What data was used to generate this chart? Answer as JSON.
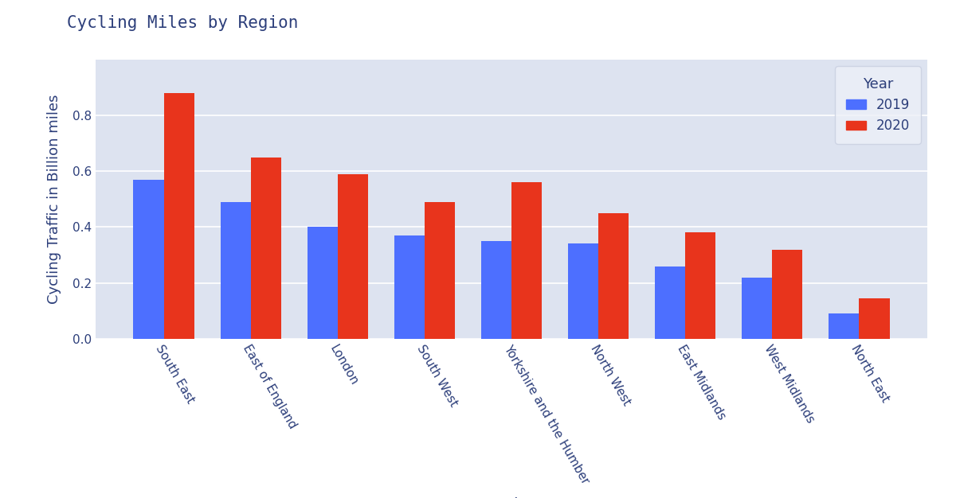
{
  "title": "Cycling Miles by Region",
  "xlabel": "Region",
  "ylabel": "Cycling Traffic in Billion miles",
  "categories": [
    "South East",
    "East of England",
    "London",
    "South West",
    "Yorkshire and the Humber",
    "North West",
    "East Midlands",
    "West Midlands",
    "North East"
  ],
  "values_2019": [
    0.57,
    0.49,
    0.4,
    0.37,
    0.35,
    0.34,
    0.26,
    0.22,
    0.09
  ],
  "values_2020": [
    0.88,
    0.65,
    0.59,
    0.49,
    0.56,
    0.45,
    0.38,
    0.32,
    0.145
  ],
  "color_2019": "#4d6fff",
  "color_2020": "#e8341c",
  "background_color": "#dde3f0",
  "fig_background": "#ffffff",
  "title_color": "#2c3e7a",
  "axis_label_color": "#2c3e7a",
  "tick_color": "#2c3e7a",
  "legend_title": "Year",
  "bar_width": 0.35,
  "ylim": [
    0,
    1.0
  ],
  "yticks": [
    0.0,
    0.2,
    0.4,
    0.6,
    0.8
  ],
  "title_fontsize": 15,
  "axis_label_fontsize": 13,
  "tick_fontsize": 11,
  "legend_fontsize": 12
}
